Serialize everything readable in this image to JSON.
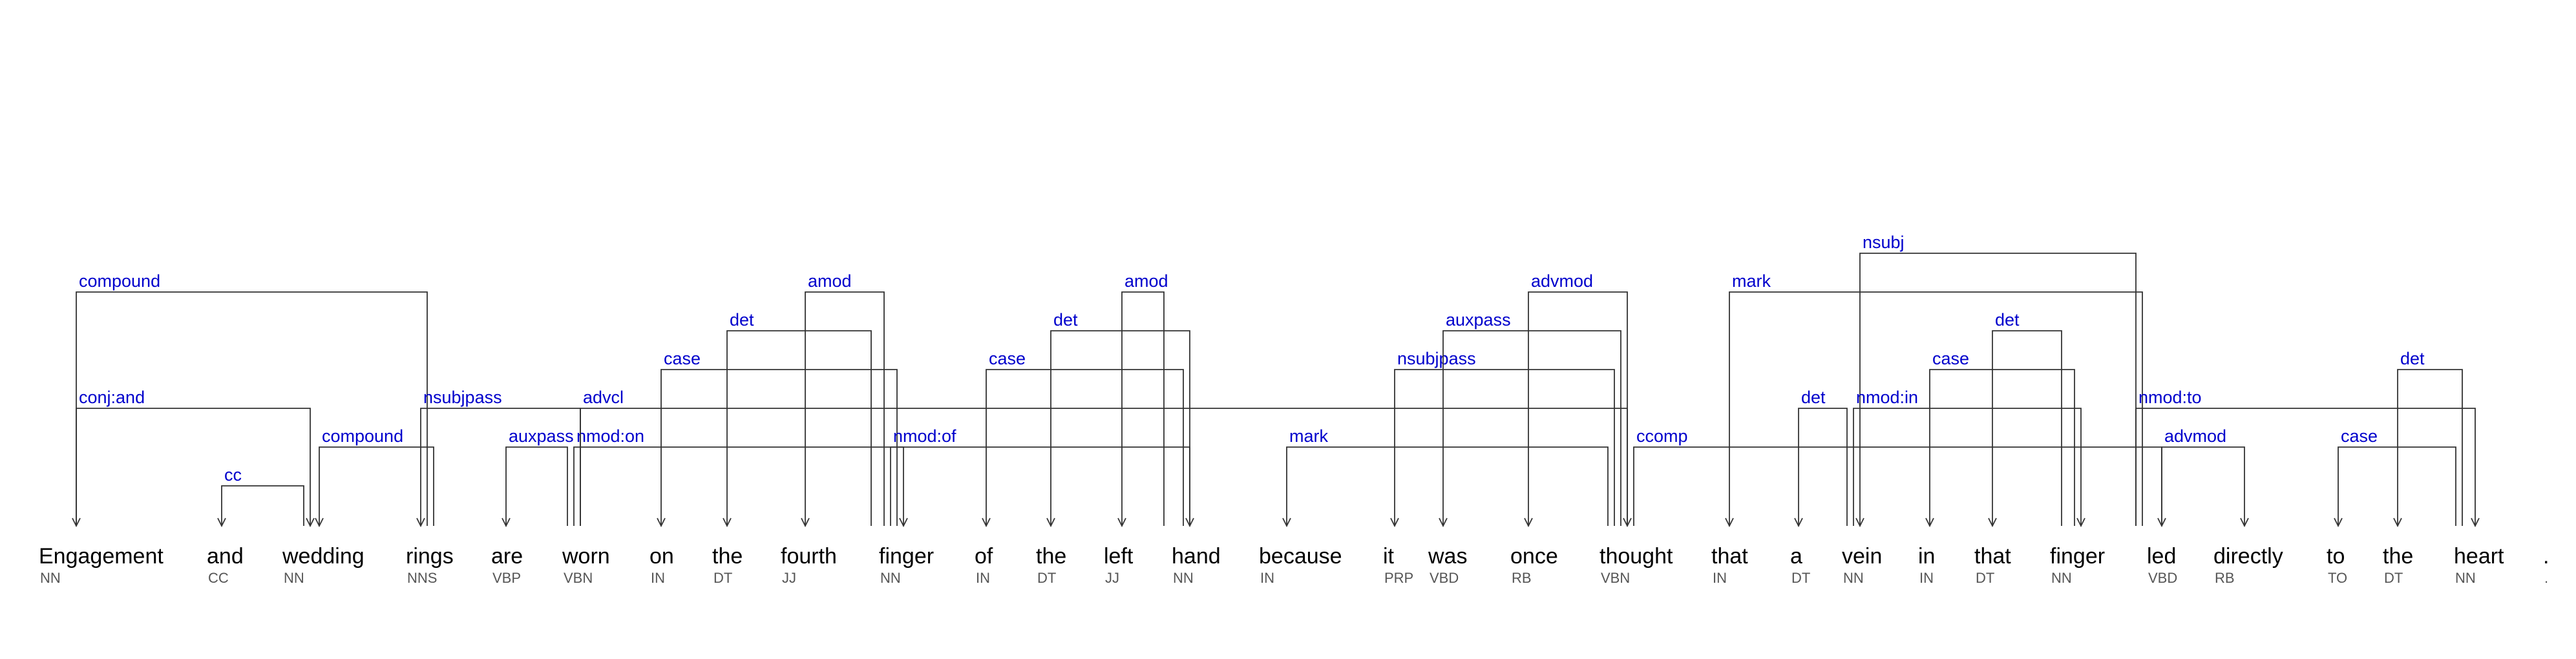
{
  "tokens": [
    {
      "word": "Engagement",
      "tag": "NN"
    },
    {
      "word": "and",
      "tag": "CC"
    },
    {
      "word": "wedding",
      "tag": "NN"
    },
    {
      "word": "rings",
      "tag": "NNS"
    },
    {
      "word": "are",
      "tag": "VBP"
    },
    {
      "word": "worn",
      "tag": "VBN"
    },
    {
      "word": "on",
      "tag": "IN"
    },
    {
      "word": "the",
      "tag": "DT"
    },
    {
      "word": "fourth",
      "tag": "JJ"
    },
    {
      "word": "finger",
      "tag": "NN"
    },
    {
      "word": "of",
      "tag": "IN"
    },
    {
      "word": "the",
      "tag": "DT"
    },
    {
      "word": "left",
      "tag": "JJ"
    },
    {
      "word": "hand",
      "tag": "NN"
    },
    {
      "word": "because",
      "tag": "IN"
    },
    {
      "word": "it",
      "tag": "PRP"
    },
    {
      "word": "was",
      "tag": "VBD"
    },
    {
      "word": "once",
      "tag": "RB"
    },
    {
      "word": "thought",
      "tag": "VBN"
    },
    {
      "word": "that",
      "tag": "IN"
    },
    {
      "word": "a",
      "tag": "DT"
    },
    {
      "word": "vein",
      "tag": "NN"
    },
    {
      "word": "in",
      "tag": "IN"
    },
    {
      "word": "that",
      "tag": "DT"
    },
    {
      "word": "finger",
      "tag": "NN"
    },
    {
      "word": "led",
      "tag": "VBD"
    },
    {
      "word": "directly",
      "tag": "RB"
    },
    {
      "word": "to",
      "tag": "TO"
    },
    {
      "word": "the",
      "tag": "DT"
    },
    {
      "word": "heart",
      "tag": "NN"
    },
    {
      "word": ".",
      "tag": "."
    }
  ],
  "arcs": [
    {
      "label": "compound",
      "head": 3,
      "dep": 0
    },
    {
      "label": "cc",
      "head": 2,
      "dep": 1
    },
    {
      "label": "conj:and",
      "head": 0,
      "dep": 2
    },
    {
      "label": "compound",
      "head": 3,
      "dep": 2
    },
    {
      "label": "nsubjpass",
      "head": 5,
      "dep": 3
    },
    {
      "label": "auxpass",
      "head": 5,
      "dep": 4
    },
    {
      "label": "nmod:on",
      "head": 5,
      "dep": 9
    },
    {
      "label": "advcl",
      "head": 5,
      "dep": 18
    },
    {
      "label": "case",
      "head": 9,
      "dep": 6
    },
    {
      "label": "det",
      "head": 9,
      "dep": 7
    },
    {
      "label": "amod",
      "head": 9,
      "dep": 8
    },
    {
      "label": "nmod:of",
      "head": 9,
      "dep": 13
    },
    {
      "label": "case",
      "head": 13,
      "dep": 10
    },
    {
      "label": "det",
      "head": 13,
      "dep": 11
    },
    {
      "label": "amod",
      "head": 13,
      "dep": 12
    },
    {
      "label": "mark",
      "head": 18,
      "dep": 14
    },
    {
      "label": "nsubjpass",
      "head": 18,
      "dep": 15
    },
    {
      "label": "auxpass",
      "head": 18,
      "dep": 16
    },
    {
      "label": "advmod",
      "head": 18,
      "dep": 17
    },
    {
      "label": "ccomp",
      "head": 18,
      "dep": 25
    },
    {
      "label": "mark",
      "head": 25,
      "dep": 19
    },
    {
      "label": "det",
      "head": 21,
      "dep": 20
    },
    {
      "label": "nsubj",
      "head": 25,
      "dep": 21
    },
    {
      "label": "nmod:in",
      "head": 21,
      "dep": 24
    },
    {
      "label": "case",
      "head": 24,
      "dep": 22
    },
    {
      "label": "det",
      "head": 24,
      "dep": 23
    },
    {
      "label": "advmod",
      "head": 25,
      "dep": 26
    },
    {
      "label": "nmod:to",
      "head": 25,
      "dep": 29
    },
    {
      "label": "case",
      "head": 29,
      "dep": 27
    },
    {
      "label": "det",
      "head": 29,
      "dep": 28
    }
  ],
  "colors": {
    "label": "#0000cc",
    "line": "#333333",
    "word": "#000000",
    "tag": "#555555"
  }
}
